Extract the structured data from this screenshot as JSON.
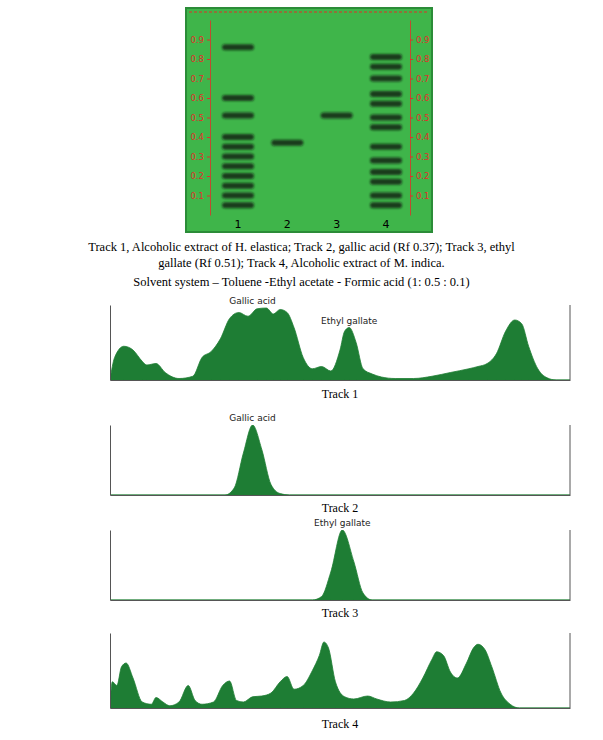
{
  "caption": [
    "Track 1, Alcoholic extract of H. elastica; Track 2, gallic acid (Rf 0.37); Track 3, ethyl",
    "gallate (Rf 0.51); Track 4, Alcoholic extract of M. indica.",
    "Solvent system – Toluene -Ethyl acetate - Formic acid (1: 0.5 : 0.1)"
  ],
  "chart_data": [
    {
      "type": "tlc",
      "categories": [
        "1",
        "2",
        "3",
        "4"
      ],
      "bands": [
        [
          0.86,
          0.6,
          0.51,
          0.4,
          0.35,
          0.3,
          0.25,
          0.2,
          0.15,
          0.1,
          0.05
        ],
        [
          0.37
        ],
        [
          0.51
        ],
        [
          0.81,
          0.76,
          0.7,
          0.62,
          0.57,
          0.5,
          0.45,
          0.35,
          0.28,
          0.22,
          0.17,
          0.1,
          0.05
        ]
      ],
      "ylim": [
        0,
        1
      ],
      "yticks": [
        0.1,
        0.2,
        0.3,
        0.4,
        0.5,
        0.6,
        0.7,
        0.8,
        0.9
      ],
      "tick_labels": "y",
      "color": "#141a14"
    },
    {
      "type": "area",
      "title": "Track 1",
      "x": [
        0,
        0.01,
        0.03,
        0.05,
        0.07,
        0.08,
        0.1,
        0.12,
        0.15,
        0.18,
        0.2,
        0.22,
        0.24,
        0.26,
        0.28,
        0.3,
        0.32,
        0.34,
        0.355,
        0.37,
        0.385,
        0.4,
        0.42,
        0.44,
        0.46,
        0.48,
        0.5,
        0.51,
        0.52,
        0.535,
        0.55,
        0.57,
        0.59,
        0.62,
        0.66,
        0.7,
        0.74,
        0.78,
        0.8,
        0.82,
        0.84,
        0.86,
        0.88,
        0.895,
        0.91,
        0.93,
        0.95,
        0.97,
        1
      ],
      "values": [
        0,
        30,
        45,
        40,
        25,
        20,
        22,
        10,
        2,
        5,
        30,
        38,
        55,
        82,
        90,
        85,
        95,
        96,
        88,
        94,
        90,
        70,
        30,
        15,
        18,
        12,
        40,
        65,
        70,
        50,
        15,
        8,
        4,
        2,
        2,
        5,
        10,
        15,
        18,
        22,
        35,
        65,
        80,
        75,
        45,
        15,
        3,
        0,
        0
      ],
      "xlim": [
        0,
        1
      ],
      "ylim": [
        0,
        100
      ],
      "tick_labels": false,
      "color": "#1e7d34",
      "annotations": [
        {
          "text": "Gallic acid",
          "x": 0.31,
          "y": 96
        },
        {
          "text": "Ethyl gallate",
          "x": 0.52,
          "y": 70
        }
      ]
    },
    {
      "type": "area",
      "title": "Track 2",
      "x": [
        0,
        0.25,
        0.27,
        0.29,
        0.31,
        0.33,
        0.35,
        0.37,
        0.39,
        1
      ],
      "values": [
        0,
        0,
        10,
        60,
        100,
        65,
        15,
        2,
        0,
        0
      ],
      "xlim": [
        0,
        1
      ],
      "ylim": [
        0,
        100
      ],
      "tick_labels": false,
      "color": "#1e7d34",
      "annotations": [
        {
          "text": "Gallic acid",
          "x": 0.31,
          "y": 100
        }
      ]
    },
    {
      "type": "area",
      "title": "Track 3",
      "x": [
        0,
        0.44,
        0.46,
        0.48,
        0.505,
        0.53,
        0.55,
        0.57,
        1
      ],
      "values": [
        0,
        0,
        5,
        40,
        100,
        55,
        10,
        0,
        0
      ],
      "xlim": [
        0,
        1
      ],
      "ylim": [
        0,
        100
      ],
      "tick_labels": false,
      "color": "#1e7d34",
      "annotations": [
        {
          "text": "Ethyl gallate",
          "x": 0.505,
          "y": 100
        }
      ]
    },
    {
      "type": "area",
      "title": "Track 4",
      "x": [
        0,
        0.005,
        0.015,
        0.025,
        0.035,
        0.05,
        0.07,
        0.09,
        0.1,
        0.115,
        0.13,
        0.15,
        0.17,
        0.185,
        0.2,
        0.225,
        0.245,
        0.26,
        0.275,
        0.29,
        0.31,
        0.33,
        0.35,
        0.37,
        0.385,
        0.4,
        0.42,
        0.44,
        0.455,
        0.465,
        0.475,
        0.49,
        0.51,
        0.53,
        0.56,
        0.58,
        0.61,
        0.64,
        0.66,
        0.68,
        0.7,
        0.71,
        0.725,
        0.74,
        0.755,
        0.775,
        0.79,
        0.8,
        0.815,
        0.83,
        0.85,
        0.87,
        0.89,
        1
      ],
      "values": [
        0,
        35,
        30,
        55,
        60,
        40,
        8,
        5,
        14,
        8,
        3,
        8,
        30,
        10,
        5,
        8,
        30,
        36,
        10,
        8,
        15,
        16,
        20,
        35,
        42,
        25,
        30,
        50,
        70,
        88,
        80,
        35,
        15,
        12,
        16,
        12,
        8,
        10,
        20,
        40,
        65,
        75,
        70,
        48,
        40,
        60,
        80,
        85,
        78,
        55,
        20,
        5,
        0,
        0
      ],
      "xlim": [
        0,
        1
      ],
      "ylim": [
        0,
        100
      ],
      "tick_labels": false,
      "color": "#1e7d34"
    }
  ]
}
